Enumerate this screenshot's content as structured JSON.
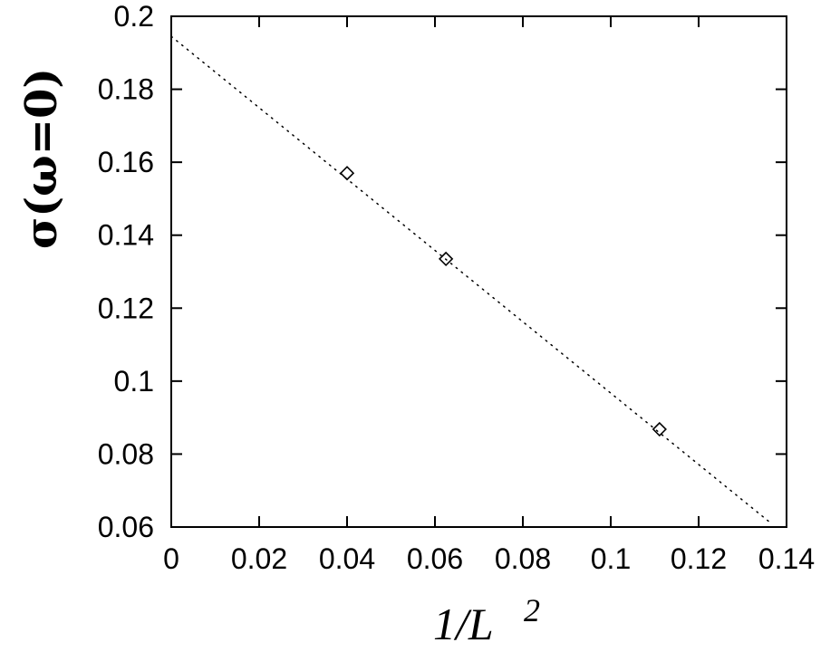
{
  "chart_data": {
    "type": "scatter",
    "xlabel": "1/L",
    "xlabel_superscript": "2",
    "ylabel": "σ(ω=0)",
    "xlim": [
      0,
      0.14
    ],
    "ylim": [
      0.06,
      0.2
    ],
    "x_ticks": [
      "0",
      "0.02",
      "0.04",
      "0.06",
      "0.08",
      "0.1",
      "0.12",
      "0.14"
    ],
    "y_ticks": [
      "0.06",
      "0.08",
      "0.1",
      "0.12",
      "0.14",
      "0.16",
      "0.18",
      "0.2"
    ],
    "x_tick_values": [
      0,
      0.02,
      0.04,
      0.06,
      0.08,
      0.1,
      0.12,
      0.14
    ],
    "y_tick_values": [
      0.06,
      0.08,
      0.1,
      0.12,
      0.14,
      0.16,
      0.18,
      0.2
    ],
    "grid": false,
    "series": [
      {
        "marker": "diamond",
        "x": [
          0.04,
          0.0625,
          0.1111
        ],
        "y": [
          0.157,
          0.1335,
          0.0868
        ]
      }
    ],
    "fit_line": {
      "style": "dotted",
      "x": [
        0,
        0.136
      ],
      "y": [
        0.1945,
        0.0615
      ]
    }
  }
}
